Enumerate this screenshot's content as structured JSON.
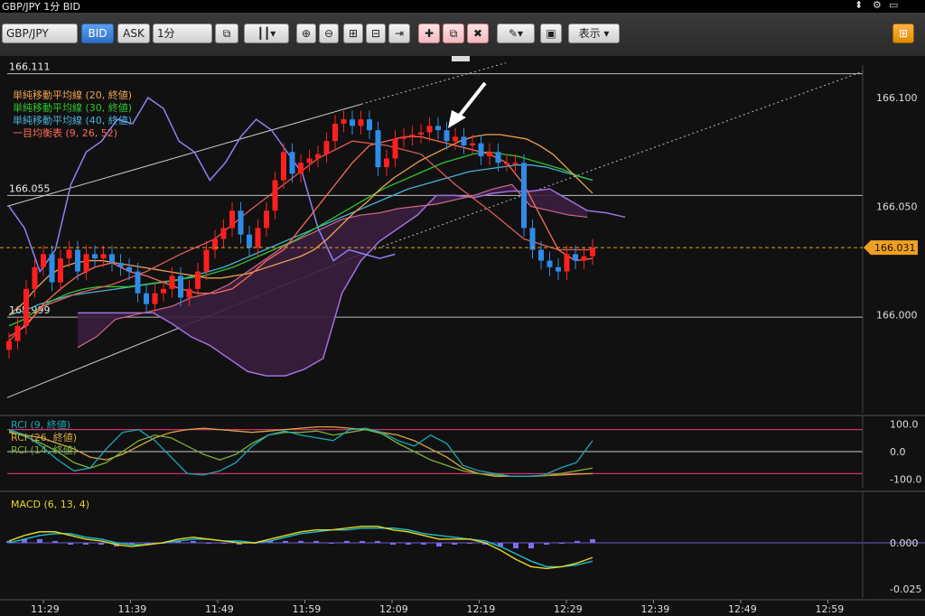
{
  "window": {
    "title": "GBP/JPY 1分 BID",
    "controls": [
      "⬍",
      "⚙",
      "▭"
    ]
  },
  "toolbar": {
    "pair": "GBP/JPY",
    "bid": "BID",
    "ask": "ASK",
    "timeframe": "1分",
    "display": "表示 ▾",
    "icons": [
      "link-icon",
      "candle-type-icon",
      "zoom-in-icon",
      "zoom-out-icon",
      "fit-width-icon",
      "fit-height-icon",
      "shift-icon",
      "draw-add-icon",
      "draw-copy-icon",
      "draw-delete-icon",
      "pencil-icon",
      "screenshot-icon",
      "layout-icon"
    ]
  },
  "colors": {
    "bg": "#111111",
    "up": "#ff1f1f",
    "down": "#2e8be8",
    "sma20": "#f0a050",
    "sma30": "#2fc42f",
    "sma40": "#49b0d8",
    "ichimoku": "#ff6a5a",
    "span": "#a070e0",
    "cloud": "#3a1f3e",
    "rci9": "#1aa7b8",
    "rci26": "#d7a640",
    "rci14": "#79b03a",
    "macd": "#e6d820",
    "signal": "#1ec0c8",
    "hist": "#7b6cf0"
  },
  "chart_data": [
    {
      "type": "candlestick",
      "title": "",
      "x_ticks": [
        "11:29",
        "11:39",
        "11:49",
        "11:59",
        "12:09",
        "12:19",
        "12:29",
        "12:39",
        "12:49",
        "12:59"
      ],
      "y_ticks": [
        166.1,
        166.05,
        166.0
      ],
      "ylim": [
        165.955,
        166.115
      ],
      "current_price": "166.031",
      "horizontal_lines": [
        {
          "label": "166.111",
          "value": 166.111
        },
        {
          "label": "166.055",
          "value": 166.055
        },
        {
          "label": "165.999",
          "value": 165.999
        }
      ],
      "legend": [
        {
          "text": "単純移動平均線 (20, 終値)",
          "color": "#f0a050"
        },
        {
          "text": "単純移動平均線 (30, 終値)",
          "color": "#2fc42f"
        },
        {
          "text": "単純移動平均線 (40, 終値)",
          "color": "#49b0d8"
        },
        {
          "text": "一目均衡表 (9, 26, 52)",
          "color": "#ff6a5a"
        }
      ],
      "close": [
        165.988,
        165.995,
        166.012,
        166.022,
        166.028,
        166.015,
        166.026,
        166.03,
        166.02,
        166.028,
        166.026,
        166.028,
        166.024,
        166.022,
        166.02,
        166.01,
        166.005,
        166.01,
        166.012,
        166.018,
        166.008,
        166.012,
        166.02,
        166.03,
        166.035,
        166.04,
        166.048,
        166.037,
        166.031,
        166.04,
        166.048,
        166.062,
        166.075,
        166.065,
        166.07,
        166.072,
        166.074,
        166.08,
        166.088,
        166.09,
        166.087,
        166.09,
        166.085,
        166.068,
        166.072,
        166.081,
        166.082,
        166.083,
        166.084,
        166.087,
        166.085,
        166.08,
        166.082,
        166.078,
        166.079,
        166.073,
        166.075,
        166.07,
        166.07,
        166.07,
        166.04,
        166.03,
        166.025,
        166.022,
        166.02,
        166.028,
        166.025,
        166.027,
        166.031
      ],
      "sma20": [
        166.0,
        166.005,
        166.012,
        166.018,
        166.022,
        166.024,
        166.025,
        166.025,
        166.024,
        166.023,
        166.022,
        166.021,
        166.02,
        166.019,
        166.018,
        166.017,
        166.017,
        166.018,
        166.019,
        166.021,
        166.023,
        166.025,
        166.027,
        166.03,
        166.035,
        166.041,
        166.047,
        166.052,
        166.058,
        166.063,
        166.067,
        166.071,
        166.074,
        166.077,
        166.08,
        166.082,
        166.083,
        166.083,
        166.082,
        166.081,
        166.078,
        166.074,
        166.068,
        166.062,
        166.056
      ],
      "sma30": [
        165.995,
        165.998,
        166.003,
        166.007,
        166.01,
        166.012,
        166.013,
        166.013,
        166.013,
        166.014,
        166.015,
        166.016,
        166.017,
        166.018,
        166.02,
        166.022,
        166.025,
        166.028,
        166.031,
        166.034,
        166.038,
        166.042,
        166.046,
        166.05,
        166.054,
        166.058,
        166.061,
        166.064,
        166.067,
        166.07,
        166.072,
        166.074,
        166.075,
        166.074,
        166.073,
        166.071,
        166.069,
        166.067,
        166.064,
        166.062
      ],
      "sma40": [
        166.0,
        166.002,
        166.005,
        166.007,
        166.009,
        166.01,
        166.011,
        166.012,
        166.013,
        166.014,
        166.015,
        166.016,
        166.018,
        166.02,
        166.022,
        166.025,
        166.028,
        166.031,
        166.034,
        166.037,
        166.04,
        166.043,
        166.046,
        166.049,
        166.052,
        166.055,
        166.058,
        166.06,
        166.062,
        166.064,
        166.066,
        166.067,
        166.068,
        166.069,
        166.069,
        166.068,
        166.066,
        166.064,
        166.062
      ],
      "tenkan": [
        165.99,
        165.995,
        166.005,
        166.012,
        166.018,
        166.022,
        166.024,
        166.02,
        166.018,
        166.015,
        166.012,
        166.01,
        166.01,
        166.012,
        166.018,
        166.025,
        166.03,
        166.04,
        166.05,
        166.06,
        166.07,
        166.078,
        166.08,
        166.082,
        166.082,
        166.08,
        166.078,
        166.076,
        166.074,
        166.07,
        166.06,
        166.045,
        166.03,
        166.025,
        166.026
      ],
      "kijun": [
        165.988,
        166.004,
        166.01,
        166.014,
        166.02,
        166.028,
        166.035,
        166.048,
        166.06,
        166.072,
        166.08,
        166.078,
        166.074,
        166.06,
        166.048,
        166.035,
        166.03,
        166.03
      ],
      "span_a": [
        166.001,
        166.001,
        166.001,
        166.001,
        166.001,
        165.996,
        165.99,
        165.986,
        165.98,
        165.974,
        165.972,
        165.972,
        165.975,
        165.98,
        166.01,
        166.025,
        166.034,
        166.04,
        166.046,
        166.055,
        166.055,
        166.054,
        166.056,
        166.057,
        166.057,
        166.058,
        166.053,
        166.048,
        166.047,
        166.045
      ],
      "span_b": [
        165.985,
        165.99,
        165.998,
        166.0,
        166.002,
        166.004,
        166.008,
        166.01,
        166.014,
        166.02,
        166.026,
        166.032,
        166.036,
        166.04,
        166.044,
        166.046,
        166.047,
        166.049,
        166.05,
        166.051,
        166.053,
        166.055,
        166.058,
        166.06,
        166.05,
        166.048,
        166.046,
        166.045
      ],
      "chikou": [
        166.05,
        166.04,
        166.02,
        166.03,
        166.06,
        166.075,
        166.08,
        166.09,
        166.088,
        166.1,
        166.095,
        166.08,
        166.075,
        166.062,
        166.07,
        166.082,
        166.09,
        166.085,
        166.075,
        166.065,
        166.04,
        166.025,
        166.03,
        166.028,
        166.026,
        166.028
      ]
    },
    {
      "type": "line",
      "title": "RCI",
      "y_ticks": [
        "100.0",
        "0.0",
        "-100.0"
      ],
      "ylim": [
        -115,
        115
      ],
      "legend": [
        {
          "text": "RCI (9, 終値)",
          "color": "#1aa7b8"
        },
        {
          "text": "RCI (26, 終値)",
          "color": "#d7a640"
        },
        {
          "text": "RCI (14, 終値)",
          "color": "#79b03a"
        }
      ],
      "rci9": [
        80,
        60,
        20,
        -30,
        -70,
        -60,
        10,
        70,
        80,
        40,
        -20,
        -80,
        -85,
        -70,
        -40,
        20,
        60,
        75,
        60,
        50,
        40,
        80,
        85,
        70,
        40,
        20,
        60,
        30,
        -50,
        -70,
        -80,
        -90,
        -90,
        -85,
        -60,
        -40,
        40
      ],
      "rci26": [
        70,
        60,
        50,
        30,
        10,
        -20,
        -30,
        -10,
        20,
        50,
        70,
        80,
        85,
        80,
        75,
        70,
        75,
        80,
        85,
        90,
        90,
        85,
        80,
        70,
        60,
        40,
        10,
        -20,
        -60,
        -80,
        -90,
        -90,
        -90,
        -88,
        -85,
        -82,
        -80
      ],
      "rci14": [
        75,
        55,
        30,
        0,
        -40,
        -60,
        -40,
        0,
        40,
        60,
        50,
        20,
        -10,
        -30,
        -10,
        30,
        60,
        70,
        70,
        75,
        60,
        70,
        80,
        65,
        30,
        0,
        -30,
        -50,
        -70,
        -80,
        -85,
        -90,
        -90,
        -88,
        -80,
        -70,
        -60
      ]
    },
    {
      "type": "line",
      "title": "MACD",
      "y_ticks": [
        "0.000",
        "-0.025"
      ],
      "ylim": [
        -0.03,
        0.028
      ],
      "legend": [
        {
          "text": "MACD (6, 13, 4)",
          "color": "#e6d820"
        }
      ],
      "macd": [
        0.001,
        0.004,
        0.006,
        0.006,
        0.004,
        0.002,
        0.001,
        -0.001,
        -0.002,
        -0.001,
        0.0,
        0.002,
        0.003,
        0.002,
        0.001,
        0.0,
        0.0,
        0.002,
        0.004,
        0.006,
        0.007,
        0.007,
        0.008,
        0.009,
        0.009,
        0.007,
        0.006,
        0.004,
        0.002,
        0.002,
        0.002,
        0.0,
        -0.004,
        -0.009,
        -0.013,
        -0.014,
        -0.013,
        -0.011,
        -0.008
      ],
      "signal": [
        0.0,
        0.002,
        0.004,
        0.005,
        0.005,
        0.003,
        0.002,
        0.0,
        -0.001,
        -0.001,
        0.0,
        0.001,
        0.002,
        0.002,
        0.001,
        0.001,
        0.0,
        0.001,
        0.003,
        0.005,
        0.006,
        0.007,
        0.007,
        0.008,
        0.008,
        0.008,
        0.007,
        0.005,
        0.004,
        0.003,
        0.002,
        0.001,
        -0.002,
        -0.006,
        -0.01,
        -0.013,
        -0.013,
        -0.012,
        -0.01
      ],
      "hist": [
        0.001,
        0.002,
        0.002,
        0.001,
        -0.001,
        -0.001,
        -0.001,
        -0.002,
        -0.001,
        0.0,
        0.0,
        0.001,
        0.001,
        0.0,
        0.0,
        -0.001,
        0.0,
        0.001,
        0.001,
        0.001,
        0.001,
        0.0,
        0.001,
        0.001,
        0.001,
        -0.001,
        -0.001,
        -0.001,
        -0.002,
        -0.001,
        0.0,
        -0.001,
        -0.002,
        -0.003,
        -0.003,
        -0.001,
        0.0,
        0.001,
        0.002
      ]
    }
  ]
}
